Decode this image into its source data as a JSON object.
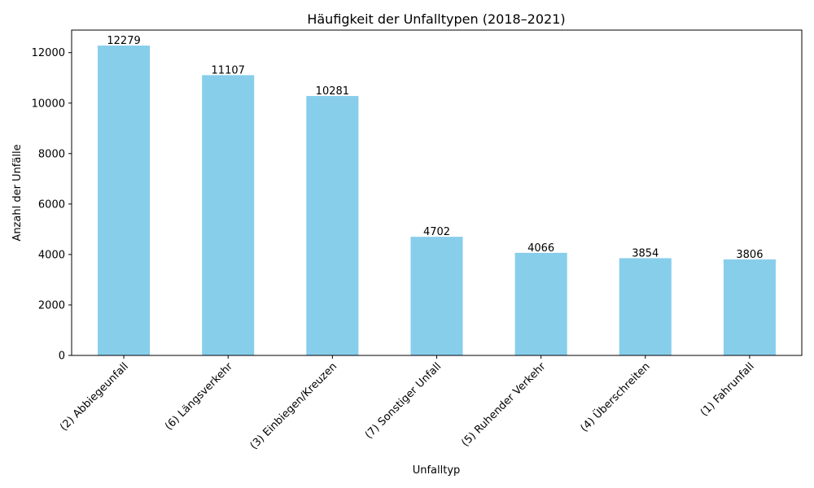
{
  "chart_data": {
    "type": "bar",
    "title": "Häufigkeit der Unfalltypen (2018–2021)",
    "xlabel": "Unfalltyp",
    "ylabel": "Anzahl der Unfälle",
    "categories": [
      "(2) Abbiegeunfall",
      "(6) Längsverkehr",
      "(3) Einbiegen/Kreuzen",
      "(7) Sonstiger Unfall",
      "(5) Ruhender Verkehr",
      "(4) Überschreiten",
      "(1) Fahrunfall"
    ],
    "values": [
      12279,
      11107,
      10281,
      4702,
      4066,
      3854,
      3806
    ],
    "ylim": [
      0,
      12893
    ],
    "yticks": [
      0,
      2000,
      4000,
      6000,
      8000,
      10000,
      12000
    ],
    "grid": false,
    "bar_color": "#87ceeb"
  }
}
